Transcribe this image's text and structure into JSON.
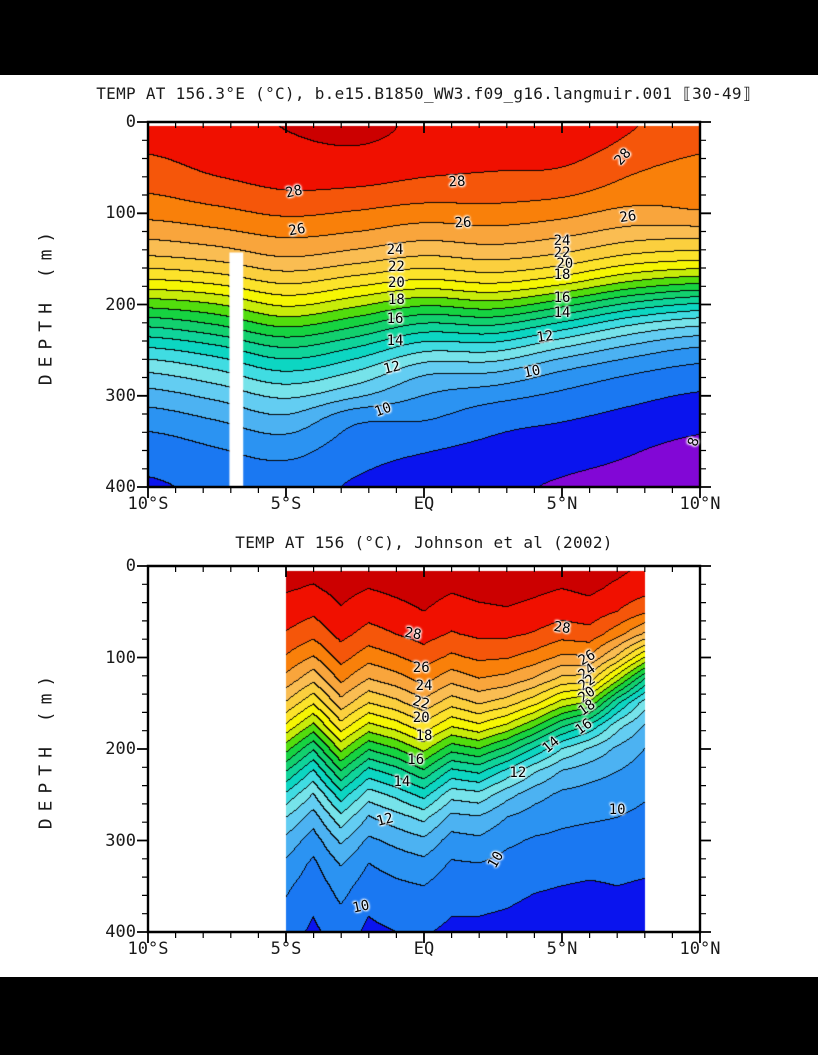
{
  "page": {
    "background": "#ffffff",
    "top_band_color": "#000000",
    "bottom_band_color": "#000000",
    "text_color": "#1a1a1a"
  },
  "palette": {
    "description": "filled contour band colors, 1 degC bands from 7-8 up to 29-30",
    "levels_min": 7,
    "levels_max": 29,
    "band_colors": [
      "#8207d6",
      "#0a14ee",
      "#1a78f2",
      "#2b93f2",
      "#4cb2f2",
      "#63cdf2",
      "#76e3ea",
      "#40dce2",
      "#0cd6c2",
      "#0fd49a",
      "#12d06e",
      "#16d341",
      "#52dd0d",
      "#c8ec09",
      "#f6f603",
      "#fce32a",
      "#fbcf3e",
      "#fabd52",
      "#f9a53c",
      "#f9800a",
      "#f5560a",
      "#f01000",
      "#cc0000"
    ]
  },
  "chart_data": [
    {
      "type": "filled-contour",
      "title": "TEMP AT 156.3°E (°C), b.e15.B1850_WW3.f09_g16.langmuir.001 ⟦30-49⟧",
      "ylabel": "DEPTH (m)",
      "xlim": [
        -10,
        10
      ],
      "ylim": [
        0,
        400
      ],
      "x_minor_step": 1,
      "y_minor_step": 20,
      "contour_interval": 1,
      "smooth_contours": true,
      "x_ticks": [
        {
          "label": "10°S",
          "value": -10
        },
        {
          "label": "5°S",
          "value": -5
        },
        {
          "label": "EQ",
          "value": 0
        },
        {
          "label": "5°N",
          "value": 5
        },
        {
          "label": "10°N",
          "value": 10
        }
      ],
      "y_ticks": [
        {
          "label": "0",
          "value": 0
        },
        {
          "label": "100",
          "value": 100
        },
        {
          "label": "200",
          "value": 200
        },
        {
          "label": "300",
          "value": 300
        },
        {
          "label": "400",
          "value": 400
        }
      ],
      "data_extent": {
        "lat": [
          -10,
          10
        ],
        "surface_gap_m": 4
      },
      "missing": [
        {
          "lat": [
            -7.05,
            -6.55
          ],
          "depth": [
            143,
            400
          ]
        }
      ],
      "grid": {
        "lat": [
          -10,
          -7.5,
          -5,
          -2.5,
          0,
          2.5,
          5,
          7.5,
          10
        ],
        "depth": [
          0,
          25,
          50,
          75,
          100,
          125,
          150,
          175,
          200,
          225,
          250,
          275,
          300,
          325,
          350,
          375,
          400
        ],
        "temp": [
          [
            28.6,
            28.75,
            29.05,
            29.3,
            28.85,
            28.8,
            28.7,
            28.1,
            27.5
          ],
          [
            28.2,
            28.55,
            28.85,
            29.02,
            28.7,
            28.6,
            28.5,
            27.8,
            27.2
          ],
          [
            27.7,
            28.2,
            28.45,
            28.55,
            28.25,
            28.1,
            28.0,
            27.2,
            26.7
          ],
          [
            27.1,
            27.6,
            28.0,
            27.9,
            27.6,
            27.5,
            27.3,
            26.6,
            26.2
          ],
          [
            26.3,
            26.7,
            27.15,
            26.9,
            26.5,
            26.6,
            26.3,
            25.7,
            25.9
          ],
          [
            25.2,
            25.6,
            26.1,
            25.8,
            25.3,
            25.5,
            25.1,
            24.4,
            24.2
          ],
          [
            23.8,
            24.2,
            24.9,
            24.4,
            23.8,
            24.1,
            23.6,
            22.6,
            22.2
          ],
          [
            21.8,
            22.3,
            23.2,
            22.5,
            21.8,
            22.2,
            21.4,
            20.0,
            19.3
          ],
          [
            19.4,
            20.0,
            21.2,
            20.3,
            19.2,
            19.6,
            18.4,
            16.8,
            15.9
          ],
          [
            17.0,
            17.8,
            19.0,
            18.0,
            16.6,
            16.8,
            15.4,
            13.8,
            12.9
          ],
          [
            14.8,
            15.6,
            16.8,
            15.8,
            14.2,
            14.2,
            12.8,
            11.6,
            10.8
          ],
          [
            13.0,
            13.8,
            14.9,
            13.9,
            12.2,
            12.0,
            10.9,
            10.1,
            9.6
          ],
          [
            11.6,
            12.3,
            13.2,
            12.2,
            11.0,
            10.4,
            9.8,
            9.3,
            8.9
          ],
          [
            10.5,
            11.1,
            11.8,
            10.3,
            10.1,
            9.4,
            9.1,
            8.7,
            8.3
          ],
          [
            9.7,
            10.2,
            10.7,
            9.6,
            9.3,
            8.9,
            8.6,
            8.2,
            7.9
          ],
          [
            9.2,
            9.6,
            9.9,
            9.2,
            8.8,
            8.5,
            8.2,
            7.9,
            7.6
          ],
          [
            8.9,
            9.2,
            9.4,
            8.9,
            8.5,
            8.2,
            7.9,
            7.6,
            7.4
          ]
        ]
      },
      "contour_labels": [
        {
          "text": "28",
          "lat": -4.7,
          "depth": 77,
          "rot": -12
        },
        {
          "text": "28",
          "lat": 1.2,
          "depth": 66,
          "rot": -3
        },
        {
          "text": "28",
          "lat": 7.2,
          "depth": 38,
          "rot": -48
        },
        {
          "text": "26",
          "lat": -4.6,
          "depth": 118,
          "rot": -10
        },
        {
          "text": "26",
          "lat": 1.4,
          "depth": 111,
          "rot": -3
        },
        {
          "text": "26",
          "lat": 7.4,
          "depth": 104,
          "rot": -8
        },
        {
          "text": "24",
          "lat": -1.05,
          "depth": 140,
          "rot": 0
        },
        {
          "text": "24",
          "lat": 5.0,
          "depth": 130,
          "rot": 0
        },
        {
          "text": "22",
          "lat": -1.0,
          "depth": 159,
          "rot": 0
        },
        {
          "text": "22",
          "lat": 5.0,
          "depth": 144,
          "rot": 0
        },
        {
          "text": "20",
          "lat": -1.0,
          "depth": 176,
          "rot": 0
        },
        {
          "text": "20",
          "lat": 5.1,
          "depth": 156,
          "rot": 0
        },
        {
          "text": "18",
          "lat": -1.0,
          "depth": 195,
          "rot": 0
        },
        {
          "text": "18",
          "lat": 5.0,
          "depth": 168,
          "rot": 0
        },
        {
          "text": "16",
          "lat": -1.05,
          "depth": 216,
          "rot": 0
        },
        {
          "text": "16",
          "lat": 5.0,
          "depth": 193,
          "rot": 0
        },
        {
          "text": "14",
          "lat": -1.05,
          "depth": 240,
          "rot": 0
        },
        {
          "text": "14",
          "lat": 5.0,
          "depth": 209,
          "rot": 0
        },
        {
          "text": "12",
          "lat": -1.15,
          "depth": 270,
          "rot": -14
        },
        {
          "text": "12",
          "lat": 4.4,
          "depth": 236,
          "rot": -8
        },
        {
          "text": "10",
          "lat": -1.5,
          "depth": 316,
          "rot": -20
        },
        {
          "text": "10",
          "lat": 3.9,
          "depth": 274,
          "rot": -12
        },
        {
          "text": "8",
          "lat": 9.8,
          "depth": 351,
          "rot": -72
        }
      ]
    },
    {
      "type": "filled-contour",
      "title": "TEMP AT 156 (°C), Johnson et al (2002)",
      "ylabel": "DEPTH (m)",
      "xlim": [
        -10,
        10
      ],
      "ylim": [
        0,
        400
      ],
      "x_minor_step": 1,
      "y_minor_step": 20,
      "contour_interval": 1,
      "smooth_contours": false,
      "x_ticks": [
        {
          "label": "10°S",
          "value": -10
        },
        {
          "label": "5°S",
          "value": -5
        },
        {
          "label": "EQ",
          "value": 0
        },
        {
          "label": "5°N",
          "value": 5
        },
        {
          "label": "10°N",
          "value": 10
        }
      ],
      "y_ticks": [
        {
          "label": "0",
          "value": 0
        },
        {
          "label": "100",
          "value": 100
        },
        {
          "label": "200",
          "value": 200
        },
        {
          "label": "300",
          "value": 300
        },
        {
          "label": "400",
          "value": 400
        }
      ],
      "data_extent": {
        "lat": [
          -5,
          8
        ],
        "surface_gap_m": 6
      },
      "missing": [],
      "grid": {
        "lat": [
          -5,
          -4,
          -3,
          -2,
          -1,
          0,
          1,
          2,
          3,
          4,
          5,
          6,
          7,
          8
        ],
        "depth": [
          0,
          25,
          50,
          75,
          100,
          125,
          150,
          175,
          200,
          225,
          250,
          275,
          300,
          325,
          350,
          375,
          400
        ],
        "temp": [
          [
            29.3,
            29.4,
            29.5,
            29.4,
            29.5,
            29.6,
            29.4,
            29.5,
            29.6,
            29.5,
            29.4,
            29.5,
            29.3,
            28.9
          ],
          [
            29.1,
            28.9,
            29.3,
            29.0,
            29.2,
            29.4,
            29.1,
            29.3,
            29.4,
            29.2,
            29.0,
            29.2,
            28.8,
            28.4
          ],
          [
            28.6,
            28.2,
            28.9,
            28.4,
            28.7,
            29.0,
            28.6,
            28.8,
            28.9,
            28.7,
            28.4,
            28.6,
            28.0,
            27.2
          ],
          [
            27.9,
            27.3,
            28.3,
            27.6,
            28.0,
            28.4,
            27.9,
            28.2,
            28.2,
            27.9,
            27.4,
            27.6,
            26.4,
            24.8
          ],
          [
            26.9,
            25.9,
            27.4,
            26.4,
            26.9,
            27.5,
            26.8,
            27.2,
            27.1,
            26.6,
            25.8,
            25.9,
            23.8,
            21.0
          ],
          [
            25.6,
            24.2,
            26.2,
            24.9,
            25.5,
            26.3,
            25.3,
            25.9,
            25.6,
            24.8,
            23.6,
            23.4,
            20.2,
            16.8
          ],
          [
            23.9,
            22.1,
            24.6,
            23.0,
            23.7,
            24.7,
            23.4,
            24.1,
            23.5,
            22.3,
            20.6,
            19.8,
            16.2,
            13.5
          ],
          [
            21.8,
            19.7,
            22.6,
            20.7,
            21.5,
            22.7,
            21.1,
            21.8,
            20.8,
            19.2,
            17.2,
            15.8,
            13.4,
            11.9
          ],
          [
            19.4,
            17.1,
            20.3,
            18.1,
            19.0,
            20.3,
            18.4,
            19.0,
            17.7,
            15.9,
            14.0,
            12.9,
            11.8,
            11.0
          ],
          [
            17.0,
            14.8,
            17.9,
            15.6,
            16.5,
            17.8,
            15.7,
            16.2,
            14.7,
            13.1,
            11.9,
            11.4,
            11.0,
            10.5
          ],
          [
            14.8,
            12.9,
            15.6,
            13.5,
            14.3,
            15.4,
            13.4,
            13.7,
            12.4,
            11.4,
            10.8,
            10.6,
            10.4,
            10.1
          ],
          [
            13.0,
            11.5,
            13.7,
            11.9,
            12.6,
            13.3,
            11.7,
            11.9,
            11.0,
            10.5,
            10.2,
            10.1,
            10.0,
            9.8
          ],
          [
            11.7,
            10.5,
            12.2,
            10.8,
            11.3,
            11.8,
            10.6,
            10.8,
            10.2,
            9.9,
            9.8,
            9.7,
            9.7,
            9.5
          ],
          [
            10.8,
            9.8,
            11.1,
            10.0,
            10.4,
            10.7,
            9.9,
            10.0,
            9.7,
            9.5,
            9.4,
            9.3,
            9.3,
            9.2
          ],
          [
            10.2,
            9.4,
            10.4,
            9.5,
            9.8,
            10.0,
            9.4,
            9.5,
            9.3,
            9.1,
            9.0,
            8.9,
            9.0,
            8.9
          ],
          [
            9.8,
            9.1,
            9.9,
            9.1,
            9.4,
            9.5,
            9.1,
            9.1,
            9.0,
            8.8,
            8.7,
            8.6,
            8.7,
            8.6
          ],
          [
            9.5,
            8.8,
            9.5,
            8.8,
            9.0,
            9.1,
            8.8,
            8.8,
            8.7,
            8.5,
            8.4,
            8.3,
            8.4,
            8.3
          ]
        ]
      },
      "contour_labels": [
        {
          "text": "28",
          "lat": -0.4,
          "depth": 74,
          "rot": 10
        },
        {
          "text": "28",
          "lat": 5.0,
          "depth": 68,
          "rot": 8
        },
        {
          "text": "26",
          "lat": -0.1,
          "depth": 112,
          "rot": 0
        },
        {
          "text": "26",
          "lat": 5.9,
          "depth": 100,
          "rot": -30
        },
        {
          "text": "24",
          "lat": 0.0,
          "depth": 131,
          "rot": 0
        },
        {
          "text": "24",
          "lat": 5.9,
          "depth": 116,
          "rot": -35
        },
        {
          "text": "22",
          "lat": -0.1,
          "depth": 150,
          "rot": 15
        },
        {
          "text": "22",
          "lat": 5.9,
          "depth": 128,
          "rot": -35
        },
        {
          "text": "20",
          "lat": -0.1,
          "depth": 166,
          "rot": 0
        },
        {
          "text": "20",
          "lat": 5.9,
          "depth": 141,
          "rot": -35
        },
        {
          "text": "18",
          "lat": 0.0,
          "depth": 186,
          "rot": 0
        },
        {
          "text": "18",
          "lat": 5.9,
          "depth": 155,
          "rot": -35
        },
        {
          "text": "16",
          "lat": -0.3,
          "depth": 212,
          "rot": 0
        },
        {
          "text": "16",
          "lat": 5.8,
          "depth": 176,
          "rot": -35
        },
        {
          "text": "14",
          "lat": -0.8,
          "depth": 236,
          "rot": 0
        },
        {
          "text": "14",
          "lat": 4.6,
          "depth": 196,
          "rot": -40
        },
        {
          "text": "12",
          "lat": -1.4,
          "depth": 278,
          "rot": -15
        },
        {
          "text": "12",
          "lat": 3.4,
          "depth": 226,
          "rot": 0
        },
        {
          "text": "10",
          "lat": 7.0,
          "depth": 267,
          "rot": 0
        },
        {
          "text": "10",
          "lat": 2.6,
          "depth": 321,
          "rot": -60
        },
        {
          "text": "10",
          "lat": -2.3,
          "depth": 373,
          "rot": -12
        }
      ]
    }
  ]
}
